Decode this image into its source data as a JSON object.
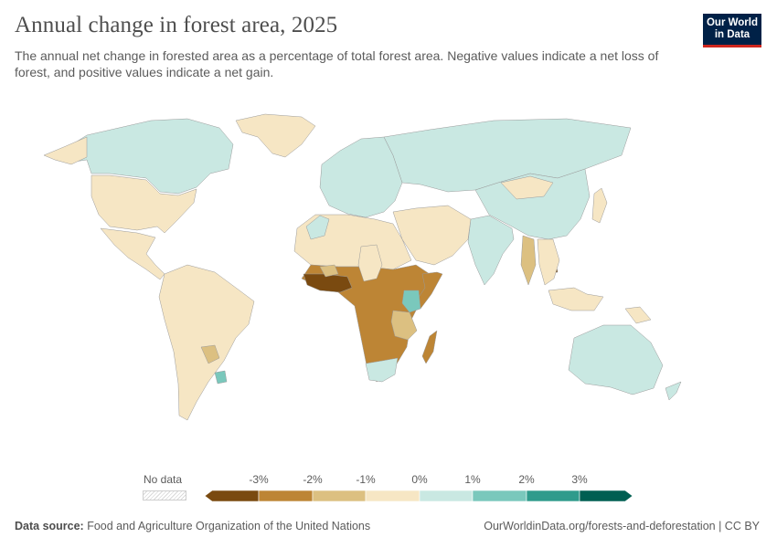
{
  "title": "Annual change in forest area, 2025",
  "subtitle": "The annual net change in forested area as a percentage of total forest area. Negative values indicate a net loss of forest, and positive values indicate a net gain.",
  "logo": {
    "line1": "Our World",
    "line2": "in Data"
  },
  "legend": {
    "no_data_label": "No data",
    "ticks": [
      "-3%",
      "-2%",
      "-1%",
      "0%",
      "1%",
      "2%",
      "3%"
    ],
    "colors": [
      "#7a4a10",
      "#bd8535",
      "#dcc081",
      "#f6e6c4",
      "#c9e8e2",
      "#7ac8bc",
      "#2f9b8c",
      "#005f52"
    ]
  },
  "footer": {
    "source_label": "Data source:",
    "source_text": "Food and Agriculture Organization of the United Nations",
    "url": "OurWorldinData.org/forests-and-deforestation | CC BY"
  },
  "map_regions": [
    {
      "name": "Canada",
      "cls": 4
    },
    {
      "name": "Greenland",
      "cls": 3
    },
    {
      "name": "United States",
      "cls": 3
    },
    {
      "name": "Mexico & Central America",
      "cls": 3
    },
    {
      "name": "South America",
      "cls": 3
    },
    {
      "name": "Paraguay",
      "cls": 2
    },
    {
      "name": "Uruguay",
      "cls": 5
    },
    {
      "name": "Europe",
      "cls": 4
    },
    {
      "name": "Russia & Central Asia",
      "cls": 4
    },
    {
      "name": "China",
      "cls": 4
    },
    {
      "name": "Mongolia",
      "cls": 3
    },
    {
      "name": "India",
      "cls": 4
    },
    {
      "name": "Middle East",
      "cls": 3
    },
    {
      "name": "North Africa",
      "cls": 3
    },
    {
      "name": "Morocco",
      "cls": 4
    },
    {
      "name": "Chad",
      "cls": 1
    },
    {
      "name": "Burkina Faso",
      "cls": 0
    },
    {
      "name": "West Africa",
      "cls": 2
    },
    {
      "name": "Central & Southern Africa",
      "cls": 3
    },
    {
      "name": "Somalia",
      "cls": 1
    },
    {
      "name": "Kenya",
      "cls": 5
    },
    {
      "name": "Tanzania",
      "cls": 2
    },
    {
      "name": "South Africa",
      "cls": 4
    },
    {
      "name": "Madagascar",
      "cls": 1
    },
    {
      "name": "Myanmar",
      "cls": 2
    },
    {
      "name": "Cambodia",
      "cls": 0
    },
    {
      "name": "Southeast Asia",
      "cls": 3
    },
    {
      "name": "Japan",
      "cls": 3
    },
    {
      "name": "Australia",
      "cls": 4
    },
    {
      "name": "New Zealand",
      "cls": 4
    },
    {
      "name": "Papua New Guinea",
      "cls": 3
    }
  ]
}
